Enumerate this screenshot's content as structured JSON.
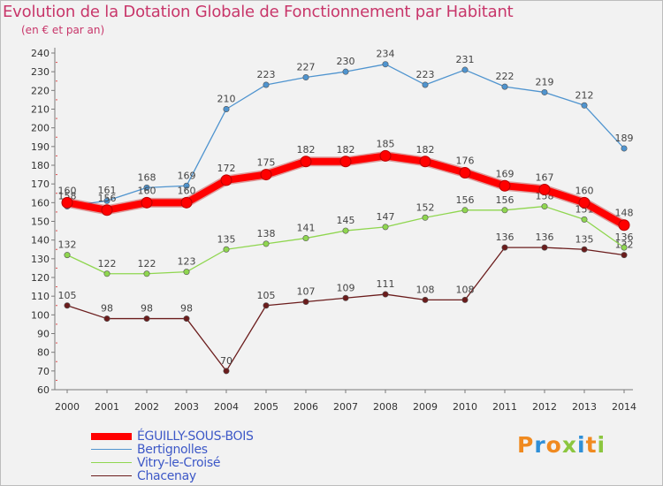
{
  "chart_data": {
    "type": "line",
    "title": "Evolution de la Dotation Globale de Fonctionnement par Habitant",
    "subtitle": "(en € et par an)",
    "xlabel": "",
    "ylabel": "",
    "x": [
      "2000",
      "2001",
      "2002",
      "2003",
      "2004",
      "2005",
      "2006",
      "2007",
      "2008",
      "2009",
      "2010",
      "2011",
      "2012",
      "2013",
      "2014"
    ],
    "ylim": [
      60,
      240
    ],
    "yticks": [
      60,
      70,
      80,
      90,
      100,
      110,
      120,
      130,
      140,
      150,
      160,
      170,
      180,
      190,
      200,
      210,
      220,
      230,
      240
    ],
    "grid": false,
    "series": [
      {
        "name": "ÉGUILLY-SOUS-BOIS",
        "color": "#ff0000",
        "values": [
          160,
          156,
          160,
          160,
          172,
          175,
          182,
          182,
          185,
          182,
          176,
          169,
          167,
          160,
          148
        ]
      },
      {
        "name": "Bertignolles",
        "color": "#4f94cf",
        "values": [
          158,
          161,
          168,
          169,
          210,
          223,
          227,
          230,
          234,
          223,
          231,
          222,
          219,
          212,
          189
        ]
      },
      {
        "name": "Vitry-le-Croisé",
        "color": "#8fd64f",
        "values": [
          132,
          122,
          122,
          123,
          135,
          138,
          141,
          145,
          147,
          152,
          156,
          156,
          158,
          151,
          136
        ]
      },
      {
        "name": "Chacenay",
        "color": "#6b1c1c",
        "values": [
          105,
          98,
          98,
          98,
          70,
          105,
          107,
          109,
          111,
          108,
          108,
          136,
          136,
          135,
          132
        ]
      }
    ]
  },
  "legend": {
    "items": [
      {
        "label": "ÉGUILLY-SOUS-BOIS"
      },
      {
        "label": "Bertignolles"
      },
      {
        "label": "Vitry-le-Croisé"
      },
      {
        "label": "Chacenay"
      }
    ]
  },
  "logo": {
    "text": "Proxiti",
    "colors": [
      "#f08a20",
      "#2f8fd8",
      "#f08a20",
      "#8cc63f",
      "#2f8fd8",
      "#f08a20",
      "#8cc63f"
    ]
  }
}
